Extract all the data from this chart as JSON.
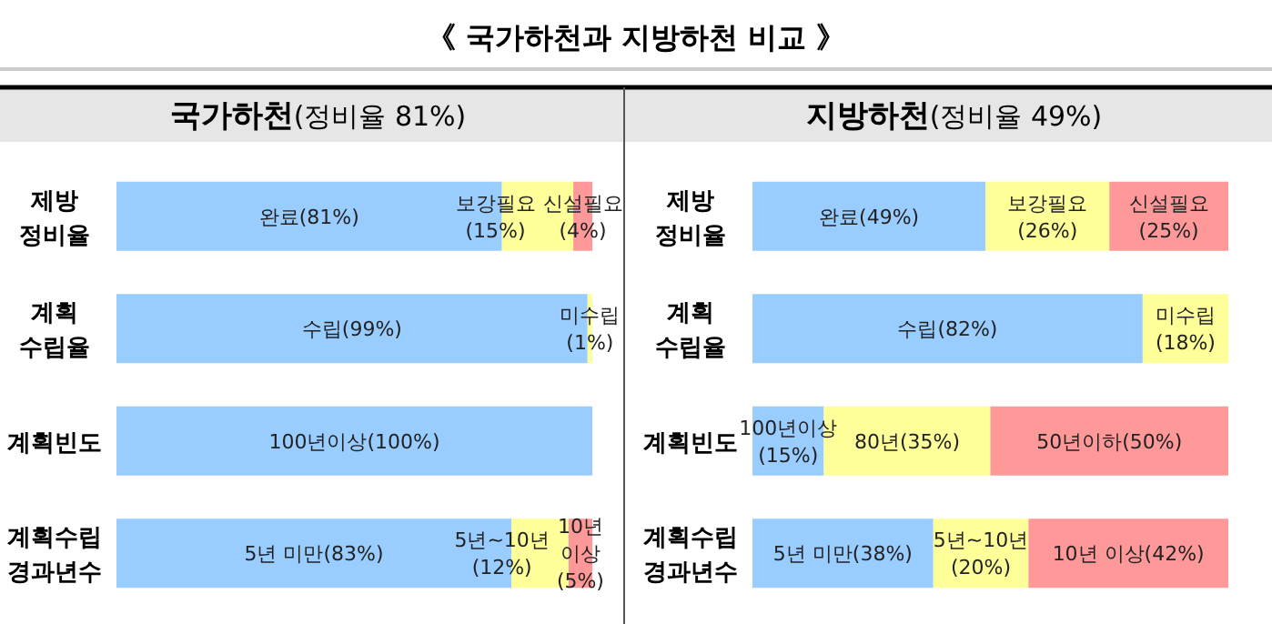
{
  "chart_data": [
    {
      "type": "bar",
      "title": "《 국가하천과 지방하천 비교 》",
      "subtitle": "**국가하천**(정비율 81%)",
      "categories": [
        "제방 정비율",
        "계획 수립율",
        "계획빈도",
        "계획수립 경과년수"
      ],
      "stacked": true,
      "orientation": "horizontal",
      "xlim": [
        0,
        100
      ],
      "tick_labels": false,
      "series": [
        {
          "color": "#99ccff",
          "values": [
            81,
            99,
            100,
            83
          ],
          "value_labels": [
            "완료(81%)",
            "수립(99%)",
            "100년이상(100%)",
            "5년 미만(83%)"
          ]
        },
        {
          "color": "#ffff99",
          "values": [
            15,
            1,
            null,
            12
          ],
          "value_labels": [
            "보강필요(15%)",
            "미수립(1%)",
            null,
            "5년~10년(12%)"
          ]
        },
        {
          "color": "#ff9999",
          "values": [
            4,
            null,
            null,
            5
          ],
          "value_labels": [
            "신설필요(4%)",
            null,
            null,
            "10년 이상(5%)"
          ]
        }
      ]
    },
    {
      "type": "bar",
      "subtitle": "**지방하천**(정비율 49%)",
      "categories": [
        "제방 정비율",
        "계획 수립율",
        "계획빈도",
        "계획수립 경과년수"
      ],
      "stacked": true,
      "orientation": "horizontal",
      "xlim": [
        0,
        100
      ],
      "tick_labels": false,
      "series": [
        {
          "color": "#99ccff",
          "values": [
            49,
            82,
            15,
            38
          ],
          "value_labels": [
            "완료(49%)",
            "수립(82%)",
            "100년이상(15%)",
            "5년 미만(38%)"
          ]
        },
        {
          "color": "#ffff99",
          "values": [
            26,
            18,
            35,
            20
          ],
          "value_labels": [
            "보강필요(26%)",
            "미수립(18%)",
            "80년(35%)",
            "5년~10년(20%)"
          ]
        },
        {
          "color": "#ff9999",
          "values": [
            25,
            null,
            50,
            42
          ],
          "value_labels": [
            "신설필요(25%)",
            null,
            "50년이하(50%)",
            "10년 이상(42%)"
          ]
        }
      ]
    }
  ]
}
